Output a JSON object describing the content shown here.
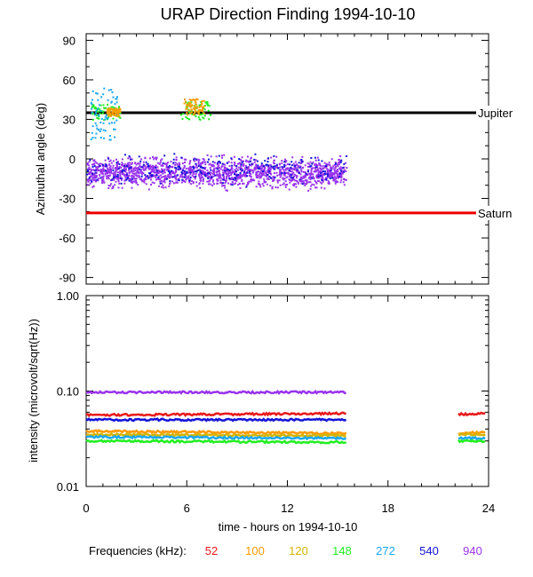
{
  "title": "URAP Direction Finding  1994-10-10",
  "xlabel": "time - hours on 1994-10-10",
  "x_ticks": [
    "0",
    "6",
    "12",
    "18",
    "24"
  ],
  "freq_legend": {
    "label": "Frequencies (kHz):",
    "items": [
      {
        "label": "52",
        "color": "#e8191a"
      },
      {
        "label": "100",
        "color": "#ff9a00"
      },
      {
        "label": "120",
        "color": "#d4b400"
      },
      {
        "label": "148",
        "color": "#22ee22"
      },
      {
        "label": "272",
        "color": "#19a8f0"
      },
      {
        "label": "540",
        "color": "#1414d8"
      },
      {
        "label": "940",
        "color": "#9933ee"
      }
    ]
  },
  "chart_data": [
    {
      "type": "scatter",
      "ylabel": "Azimuthal angle (deg)",
      "xlim": [
        0,
        24
      ],
      "ylim": [
        -95,
        95
      ],
      "y_ticks": [
        "90",
        "60",
        "30",
        "0",
        "-30",
        "-60",
        "-90"
      ],
      "grid": false,
      "reference_lines": [
        {
          "name": "Jupiter",
          "y": 35,
          "x": [
            0,
            24
          ],
          "color": "#000000"
        },
        {
          "name": "Saturn",
          "y": -41,
          "x": [
            0,
            24
          ],
          "color": "#ee0000"
        }
      ],
      "series": [
        {
          "freq_khz": 940,
          "color": "#9933ee",
          "x_range": [
            0,
            15.5
          ],
          "y_center": -10,
          "y_spread": 8
        },
        {
          "freq_khz": 540,
          "color": "#1414d8",
          "x_range": [
            0,
            15.5
          ],
          "y_center": -7,
          "y_spread": 8
        },
        {
          "freq_khz": 148,
          "color": "#22ee22",
          "clusters": [
            {
              "x": [
                0.3,
                2.0
              ],
              "y": [
                30,
                42
              ]
            },
            {
              "x": [
                5.6,
                7.4
              ],
              "y": [
                30,
                44
              ]
            }
          ]
        },
        {
          "freq_khz": 272,
          "color": "#19a8f0",
          "clusters": [
            {
              "x": [
                0.2,
                1.8
              ],
              "y": [
                15,
                55
              ]
            }
          ]
        },
        {
          "freq_khz": 100,
          "color": "#ff9a00",
          "clusters": [
            {
              "x": [
                1.2,
                2.0
              ],
              "y": [
                33,
                39
              ]
            },
            {
              "x": [
                5.8,
                7.0
              ],
              "y": [
                34,
                46
              ]
            }
          ]
        }
      ]
    },
    {
      "type": "line",
      "ylabel": "intensity (microvolt/sqrt(Hz))",
      "xlim": [
        0,
        24
      ],
      "ylim": [
        0.01,
        1.0
      ],
      "yscale": "log",
      "y_ticks": [
        "1.00",
        "0.10",
        "0.01"
      ],
      "grid": false,
      "series": [
        {
          "freq_khz": 940,
          "color": "#9933ee",
          "segments": [
            {
              "x": [
                0,
                15.5
              ],
              "y": [
                0.097,
                0.097
              ]
            }
          ]
        },
        {
          "freq_khz": 52,
          "color": "#e8191a",
          "segments": [
            {
              "x": [
                0,
                15.5
              ],
              "y": [
                0.056,
                0.058
              ]
            },
            {
              "x": [
                22.2,
                23.8
              ],
              "y": [
                0.057,
                0.058
              ]
            }
          ]
        },
        {
          "freq_khz": 540,
          "color": "#1414d8",
          "segments": [
            {
              "x": [
                0,
                15.5
              ],
              "y": [
                0.05,
                0.05
              ]
            }
          ]
        },
        {
          "freq_khz": 100,
          "color": "#ff9a00",
          "segments": [
            {
              "x": [
                0,
                15.5
              ],
              "y": [
                0.038,
                0.036
              ]
            },
            {
              "x": [
                22.2,
                23.8
              ],
              "y": [
                0.036,
                0.037
              ]
            }
          ]
        },
        {
          "freq_khz": 120,
          "color": "#d4b400",
          "segments": [
            {
              "x": [
                0,
                15.5
              ],
              "y": [
                0.035,
                0.034
              ]
            },
            {
              "x": [
                22.2,
                23.8
              ],
              "y": [
                0.035,
                0.035
              ]
            }
          ]
        },
        {
          "freq_khz": 272,
          "color": "#19a8f0",
          "segments": [
            {
              "x": [
                0,
                15.5
              ],
              "y": [
                0.033,
                0.032
              ]
            },
            {
              "x": [
                22.2,
                23.8
              ],
              "y": [
                0.032,
                0.032
              ]
            }
          ]
        },
        {
          "freq_khz": 148,
          "color": "#22ee22",
          "segments": [
            {
              "x": [
                0,
                15.5
              ],
              "y": [
                0.03,
                0.029
              ]
            },
            {
              "x": [
                22.2,
                23.8
              ],
              "y": [
                0.03,
                0.03
              ]
            }
          ]
        }
      ]
    }
  ]
}
